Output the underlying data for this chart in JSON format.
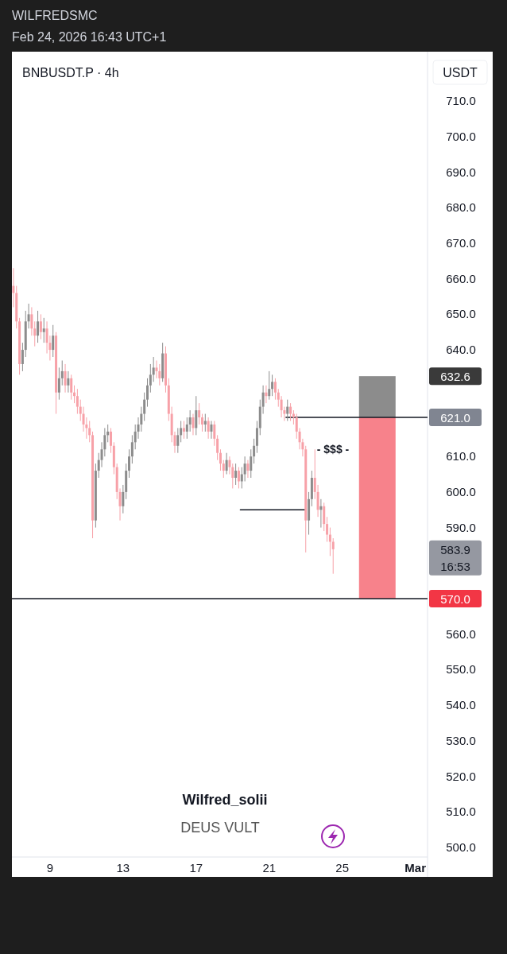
{
  "chart_data": {
    "type": "candlestick",
    "title": "BNBUSDT.P · 4h",
    "ylabel": "USDT",
    "annotations": [
      "WILFREDSMC",
      "Feb 24, 2026 16:43 UTC+1",
      "- $$$ -",
      "632.6",
      "621.0",
      "583.9",
      "16:53",
      "Wilfred_solii",
      "DEUS VULT"
    ],
    "x": [
      "2026-02-07T00:00",
      "2026-02-07T04:00",
      "2026-02-07T08:00",
      "2026-02-07T12:00",
      "2026-02-07T16:00",
      "2026-02-07T20:00",
      "2026-02-08T00:00",
      "2026-02-08T04:00",
      "2026-02-08T08:00",
      "2026-02-08T12:00",
      "2026-02-08T16:00",
      "2026-02-08T20:00",
      "2026-02-09T00:00",
      "2026-02-09T04:00",
      "2026-02-09T08:00",
      "2026-02-09T12:00",
      "2026-02-09T16:00",
      "2026-02-09T20:00",
      "2026-02-10T00:00",
      "2026-02-10T04:00",
      "2026-02-10T08:00",
      "2026-02-10T12:00",
      "2026-02-10T16:00",
      "2026-02-10T20:00",
      "2026-02-11T00:00",
      "2026-02-11T04:00",
      "2026-02-11T08:00",
      "2026-02-11T12:00",
      "2026-02-11T16:00",
      "2026-02-11T20:00",
      "2026-02-12T00:00",
      "2026-02-12T04:00",
      "2026-02-12T08:00",
      "2026-02-12T12:00",
      "2026-02-12T16:00",
      "2026-02-12T20:00",
      "2026-02-13T00:00",
      "2026-02-13T04:00",
      "2026-02-13T08:00",
      "2026-02-13T12:00",
      "2026-02-13T16:00",
      "2026-02-13T20:00",
      "2026-02-14T00:00",
      "2026-02-14T04:00",
      "2026-02-14T08:00",
      "2026-02-14T12:00",
      "2026-02-14T16:00",
      "2026-02-14T20:00",
      "2026-02-15T00:00",
      "2026-02-15T04:00",
      "2026-02-15T08:00",
      "2026-02-15T12:00",
      "2026-02-15T16:00",
      "2026-02-15T20:00",
      "2026-02-16T00:00",
      "2026-02-16T04:00",
      "2026-02-16T08:00",
      "2026-02-16T12:00",
      "2026-02-16T16:00",
      "2026-02-16T20:00",
      "2026-02-17T00:00",
      "2026-02-17T04:00",
      "2026-02-17T08:00",
      "2026-02-17T12:00",
      "2026-02-17T16:00",
      "2026-02-17T20:00",
      "2026-02-18T00:00",
      "2026-02-18T04:00",
      "2026-02-18T08:00",
      "2026-02-18T12:00",
      "2026-02-18T16:00",
      "2026-02-18T20:00",
      "2026-02-19T00:00",
      "2026-02-19T04:00",
      "2026-02-19T08:00",
      "2026-02-19T12:00",
      "2026-02-19T16:00",
      "2026-02-19T20:00",
      "2026-02-20T00:00",
      "2026-02-20T04:00",
      "2026-02-20T08:00",
      "2026-02-20T12:00",
      "2026-02-20T16:00",
      "2026-02-20T20:00",
      "2026-02-21T00:00",
      "2026-02-21T04:00",
      "2026-02-21T08:00",
      "2026-02-21T12:00",
      "2026-02-21T16:00",
      "2026-02-21T20:00",
      "2026-02-22T00:00",
      "2026-02-22T04:00",
      "2026-02-22T08:00",
      "2026-02-22T12:00",
      "2026-02-22T16:00",
      "2026-02-22T20:00",
      "2026-02-23T00:00",
      "2026-02-23T04:00",
      "2026-02-23T08:00",
      "2026-02-23T12:00",
      "2026-02-23T16:00",
      "2026-02-23T20:00",
      "2026-02-24T00:00",
      "2026-02-24T04:00",
      "2026-02-24T08:00",
      "2026-02-24T12:00"
    ],
    "ohlc": [
      [
        658,
        663,
        652,
        656
      ],
      [
        656,
        658,
        646,
        648
      ],
      [
        648,
        649,
        633,
        636
      ],
      [
        636,
        642,
        634,
        640
      ],
      [
        640,
        651,
        638,
        648
      ],
      [
        648,
        653,
        646,
        650
      ],
      [
        650,
        652,
        644,
        646
      ],
      [
        646,
        648,
        641,
        644
      ],
      [
        644,
        651,
        642,
        648
      ],
      [
        648,
        650,
        643,
        645
      ],
      [
        645,
        649,
        642,
        646
      ],
      [
        646,
        648,
        639,
        642
      ],
      [
        642,
        644,
        637,
        640
      ],
      [
        640,
        647,
        638,
        644
      ],
      [
        644,
        645,
        622,
        628
      ],
      [
        628,
        635,
        626,
        632
      ],
      [
        632,
        637,
        630,
        634
      ],
      [
        634,
        636,
        628,
        630
      ],
      [
        630,
        634,
        628,
        632
      ],
      [
        632,
        633,
        626,
        628
      ],
      [
        628,
        630,
        625,
        627
      ],
      [
        627,
        629,
        622,
        624
      ],
      [
        624,
        626,
        620,
        622
      ],
      [
        622,
        624,
        617,
        619
      ],
      [
        619,
        621,
        615,
        618
      ],
      [
        618,
        620,
        614,
        616
      ],
      [
        616,
        617,
        587,
        592
      ],
      [
        592,
        608,
        590,
        606
      ],
      [
        606,
        611,
        604,
        609
      ],
      [
        609,
        614,
        607,
        612
      ],
      [
        612,
        618,
        610,
        616
      ],
      [
        616,
        619,
        614,
        617
      ],
      [
        617,
        618,
        611,
        613
      ],
      [
        613,
        614,
        605,
        607
      ],
      [
        607,
        608,
        598,
        600
      ],
      [
        600,
        601,
        592,
        596
      ],
      [
        596,
        602,
        594,
        600
      ],
      [
        600,
        608,
        598,
        606
      ],
      [
        606,
        612,
        604,
        610
      ],
      [
        610,
        616,
        608,
        614
      ],
      [
        614,
        619,
        612,
        617
      ],
      [
        617,
        621,
        615,
        619
      ],
      [
        619,
        624,
        617,
        622
      ],
      [
        622,
        628,
        620,
        626
      ],
      [
        626,
        632,
        624,
        630
      ],
      [
        630,
        636,
        628,
        633
      ],
      [
        633,
        638,
        631,
        635
      ],
      [
        635,
        637,
        632,
        634
      ],
      [
        634,
        636,
        630,
        632
      ],
      [
        632,
        642,
        631,
        639
      ],
      [
        639,
        641,
        628,
        630
      ],
      [
        630,
        632,
        620,
        622
      ],
      [
        622,
        624,
        614,
        616
      ],
      [
        616,
        617,
        611,
        613
      ],
      [
        613,
        618,
        611,
        616
      ],
      [
        616,
        620,
        614,
        618
      ],
      [
        618,
        620,
        615,
        617
      ],
      [
        617,
        621,
        615,
        619
      ],
      [
        619,
        623,
        617,
        621
      ],
      [
        621,
        622,
        616,
        618
      ],
      [
        618,
        627,
        616,
        623
      ],
      [
        623,
        625,
        619,
        621
      ],
      [
        621,
        622,
        617,
        619
      ],
      [
        619,
        622,
        617,
        620
      ],
      [
        620,
        621,
        615,
        617
      ],
      [
        617,
        620,
        615,
        619
      ],
      [
        619,
        620,
        613,
        615
      ],
      [
        615,
        616,
        609,
        611
      ],
      [
        611,
        612,
        606,
        608
      ],
      [
        608,
        609,
        604,
        606
      ],
      [
        606,
        611,
        605,
        609
      ],
      [
        609,
        610,
        605,
        607
      ],
      [
        607,
        608,
        601,
        604
      ],
      [
        604,
        608,
        602,
        606
      ],
      [
        606,
        607,
        601,
        603
      ],
      [
        603,
        607,
        601,
        605
      ],
      [
        605,
        610,
        603,
        608
      ],
      [
        608,
        609,
        604,
        606
      ],
      [
        606,
        612,
        604,
        610
      ],
      [
        610,
        615,
        608,
        613
      ],
      [
        613,
        620,
        611,
        618
      ],
      [
        618,
        626,
        616,
        624
      ],
      [
        624,
        630,
        622,
        628
      ],
      [
        628,
        630,
        625,
        627
      ],
      [
        627,
        634,
        626,
        629
      ],
      [
        629,
        633,
        627,
        631
      ],
      [
        631,
        632,
        626,
        628
      ],
      [
        628,
        629,
        624,
        626
      ],
      [
        626,
        627,
        621,
        623
      ],
      [
        623,
        624,
        620,
        622
      ],
      [
        622,
        626,
        620,
        624
      ],
      [
        624,
        625,
        620,
        622
      ],
      [
        622,
        623,
        619,
        621
      ],
      [
        621,
        622,
        615,
        617
      ],
      [
        617,
        618,
        612,
        614
      ],
      [
        614,
        615,
        610,
        612
      ],
      [
        612,
        613,
        583,
        592
      ],
      [
        592,
        600,
        588,
        598
      ],
      [
        598,
        606,
        596,
        604
      ],
      [
        604,
        612,
        598,
        600
      ],
      [
        600,
        602,
        593,
        595
      ],
      [
        595,
        598,
        590,
        596
      ],
      [
        596,
        597,
        589,
        591
      ],
      [
        591,
        593,
        586,
        588
      ],
      [
        588,
        590,
        582,
        586
      ],
      [
        586,
        587,
        577,
        583.9
      ]
    ],
    "colors": [
      "#f7a1a8",
      "#f7a1a8",
      "#f7a1a8",
      "#8c8c8c",
      "#8c8c8c",
      "#8c8c8c",
      "#f7a1a8",
      "#f7a1a8",
      "#8c8c8c",
      "#f7a1a8",
      "#8c8c8c",
      "#f7a1a8",
      "#f7a1a8",
      "#8c8c8c",
      "#f7a1a8",
      "#8c8c8c",
      "#8c8c8c",
      "#f7a1a8",
      "#8c8c8c",
      "#f7a1a8",
      "#f7a1a8",
      "#f7a1a8",
      "#f7a1a8",
      "#f7a1a8",
      "#f7a1a8",
      "#f7a1a8",
      "#f7a1a8",
      "#8c8c8c",
      "#8c8c8c",
      "#8c8c8c",
      "#8c8c8c",
      "#8c8c8c",
      "#f7a1a8",
      "#f7a1a8",
      "#f7a1a8",
      "#f7a1a8",
      "#8c8c8c",
      "#8c8c8c",
      "#8c8c8c",
      "#8c8c8c",
      "#8c8c8c",
      "#8c8c8c",
      "#8c8c8c",
      "#8c8c8c",
      "#8c8c8c",
      "#8c8c8c",
      "#8c8c8c",
      "#f7a1a8",
      "#f7a1a8",
      "#8c8c8c",
      "#f7a1a8",
      "#f7a1a8",
      "#f7a1a8",
      "#f7a1a8",
      "#8c8c8c",
      "#8c8c8c",
      "#f7a1a8",
      "#8c8c8c",
      "#8c8c8c",
      "#f7a1a8",
      "#8c8c8c",
      "#f7a1a8",
      "#f7a1a8",
      "#8c8c8c",
      "#f7a1a8",
      "#8c8c8c",
      "#f7a1a8",
      "#f7a1a8",
      "#f7a1a8",
      "#f7a1a8",
      "#8c8c8c",
      "#f7a1a8",
      "#f7a1a8",
      "#8c8c8c",
      "#f7a1a8",
      "#8c8c8c",
      "#8c8c8c",
      "#f7a1a8",
      "#8c8c8c",
      "#8c8c8c",
      "#8c8c8c",
      "#8c8c8c",
      "#8c8c8c",
      "#f7a1a8",
      "#8c8c8c",
      "#8c8c8c",
      "#f7a1a8",
      "#f7a1a8",
      "#f7a1a8",
      "#f7a1a8",
      "#8c8c8c",
      "#f7a1a8",
      "#f7a1a8",
      "#f7a1a8",
      "#f7a1a8",
      "#f7a1a8",
      "#f7a1a8",
      "#8c8c8c",
      "#8c8c8c",
      "#f7a1a8",
      "#f7a1a8",
      "#8c8c8c",
      "#f7a1a8",
      "#f7a1a8",
      "#f7a1a8",
      "#f7a1a8"
    ],
    "series": [
      {
        "type": "line",
        "x": [
          "2026-02-19T10:00",
          "2026-02-23T00:00"
        ],
        "values": [
          595,
          595
        ],
        "color": "#131722"
      },
      {
        "type": "line",
        "x": [
          "2026-02-21T22:00",
          "2026-03-01T16:00"
        ],
        "values": [
          621,
          621
        ],
        "color": "#131722"
      },
      {
        "type": "bar",
        "x": [
          "2026-02-26T22:00"
        ],
        "base": [
          621
        ],
        "values": [
          11.6
        ],
        "color": "#8c8c8c"
      },
      {
        "type": "bar",
        "x": [
          "2026-02-26T22:00"
        ],
        "base": [
          570
        ],
        "values": [
          51
        ],
        "color": "#f7828b"
      }
    ],
    "ref_lines": [
      {
        "axis": "y",
        "value": 570,
        "label": "570.0",
        "color": "#131722"
      }
    ],
    "xlim": [
      "2026-02-06T22:00",
      "2026-03-01T16:00"
    ],
    "ylim": [
      497.3,
      723.9
    ],
    "xticks": [
      {
        "value": "2026-02-09",
        "label": "9"
      },
      {
        "value": "2026-02-13",
        "label": "13"
      },
      {
        "value": "2026-02-17",
        "label": "17"
      },
      {
        "value": "2026-02-21",
        "label": "21"
      },
      {
        "value": "2026-02-25",
        "label": "25"
      },
      {
        "value": "2026-03-01",
        "label": "Mar"
      }
    ],
    "yticks": [
      {
        "value": 500,
        "label": "500.0"
      },
      {
        "value": 510,
        "label": "510.0"
      },
      {
        "value": 520,
        "label": "520.0"
      },
      {
        "value": 530,
        "label": "530.0"
      },
      {
        "value": 540,
        "label": "540.0"
      },
      {
        "value": 550,
        "label": "550.0"
      },
      {
        "value": 560,
        "label": "560.0"
      },
      {
        "value": 590,
        "label": "590.0"
      },
      {
        "value": 600,
        "label": "600.0"
      },
      {
        "value": 610,
        "label": "610.0"
      },
      {
        "value": 640,
        "label": "640.0"
      },
      {
        "value": 650,
        "label": "650.0"
      },
      {
        "value": 660,
        "label": "660.0"
      },
      {
        "value": 670,
        "label": "670.0"
      },
      {
        "value": 680,
        "label": "680.0"
      },
      {
        "value": 690,
        "label": "690.0"
      },
      {
        "value": 700,
        "label": "700.0"
      },
      {
        "value": 710,
        "label": "710.0"
      }
    ]
  }
}
